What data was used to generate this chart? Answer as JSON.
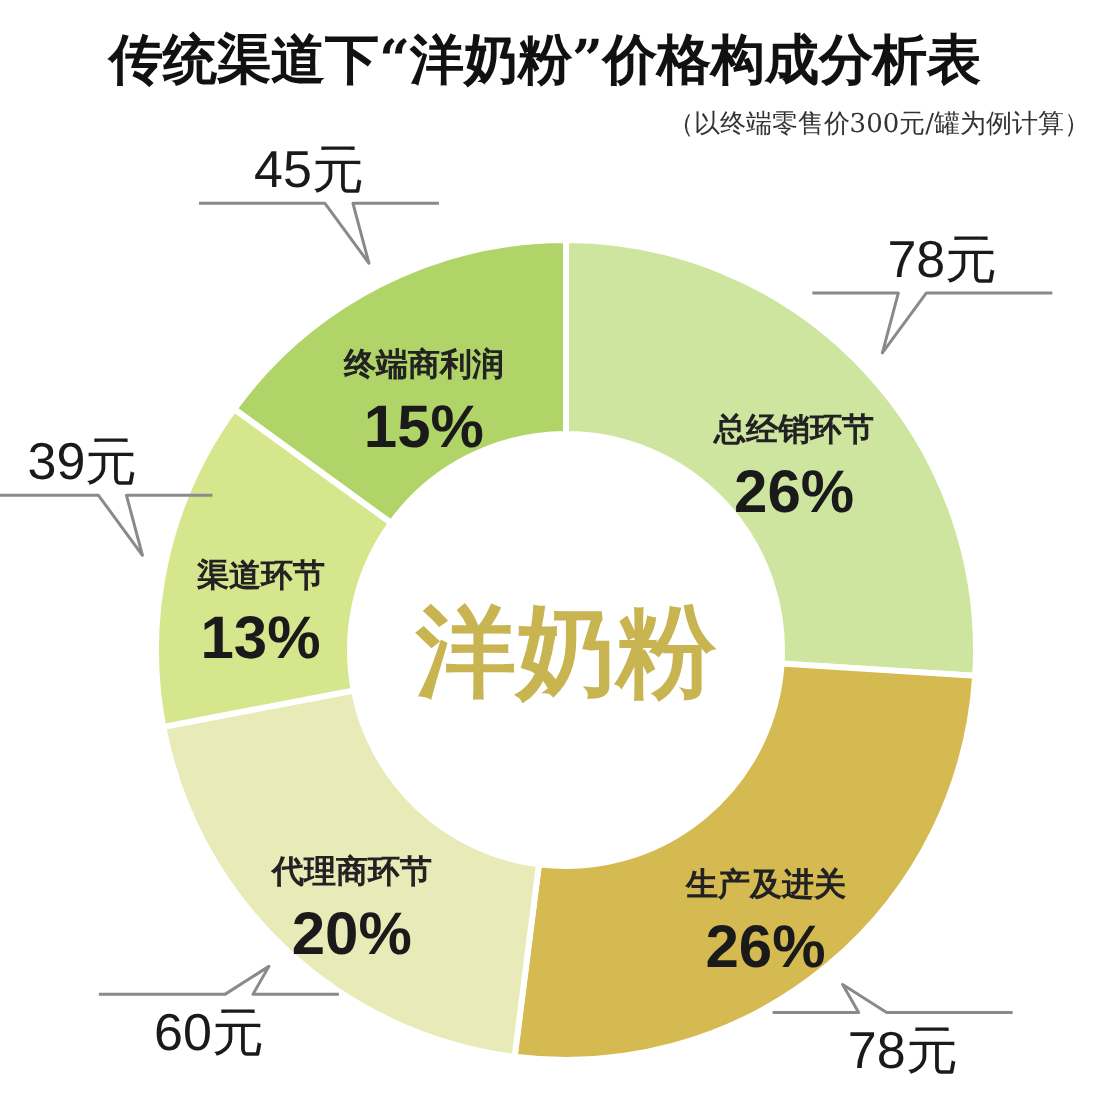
{
  "chart_data": {
    "type": "donut",
    "title": "传统渠道下“洋奶粉”价格构成分析表",
    "subtitle": "（以终端零售价300元/罐为例计算）",
    "categories": [
      "总经销环节",
      "生产及进关",
      "代理商环节",
      "渠道环节",
      "终端商利润"
    ],
    "values": [
      26,
      26,
      20,
      13,
      15
    ],
    "value_labels": [
      "26%",
      "26%",
      "20%",
      "13%",
      "15%"
    ],
    "colors": [
      "#cde59e",
      "#d4ba50",
      "#e8ebb8",
      "#d6e68c",
      "#b0d468"
    ],
    "annotations": [
      "洋奶粉",
      {
        "text": "78元",
        "x": "总经销环节"
      },
      {
        "text": "78元",
        "x": "生产及进关"
      },
      {
        "text": "60元",
        "x": "代理商环节"
      },
      {
        "text": "39元",
        "x": "渠道环节"
      },
      {
        "text": "45元",
        "x": "终端商利润"
      }
    ]
  }
}
